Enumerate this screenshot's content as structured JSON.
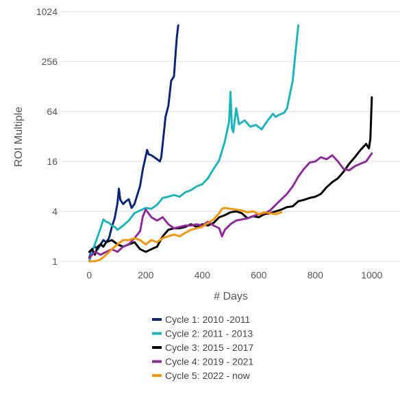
{
  "chart_data": {
    "type": "line",
    "title": "",
    "xlabel": "# Days",
    "ylabel": "ROI Multiple",
    "xlim": [
      -100,
      1100
    ],
    "xticks": [
      0,
      200,
      400,
      600,
      800,
      1000
    ],
    "ylim": [
      1,
      1024
    ],
    "yscale": "log2",
    "yticks": [
      1,
      4,
      16,
      64,
      256,
      1024
    ],
    "ytick_labels": [
      "1",
      "4",
      "16",
      "64",
      "256",
      "1024"
    ],
    "grid": "horizontal",
    "legend_position": "bottom",
    "series": [
      {
        "name": "Cycle 1: 2010 -2011",
        "color": "#0b2579",
        "x": [
          0,
          10,
          20,
          30,
          40,
          50,
          60,
          70,
          80,
          90,
          100,
          105,
          110,
          120,
          130,
          140,
          150,
          160,
          170,
          180,
          190,
          200,
          205,
          210,
          220,
          230,
          240,
          250,
          255,
          260,
          270,
          280,
          290,
          300,
          305,
          310,
          315
        ],
        "y": [
          1.1,
          1.4,
          1.5,
          1.4,
          1.6,
          1.8,
          1.7,
          1.9,
          2.6,
          3.3,
          5.0,
          7.5,
          5.5,
          4.9,
          5.3,
          5.6,
          4.4,
          4.9,
          6.3,
          8.1,
          13.0,
          18.5,
          22.0,
          19.5,
          19.0,
          18.0,
          17.0,
          16.0,
          18.0,
          26.0,
          55.0,
          75.0,
          150.0,
          170.0,
          300.0,
          500.0,
          700.0
        ]
      },
      {
        "name": "Cycle 2: 2011 - 2013",
        "color": "#1cb5be",
        "x": [
          0,
          10,
          20,
          30,
          40,
          50,
          60,
          70,
          80,
          90,
          100,
          120,
          140,
          160,
          180,
          200,
          220,
          240,
          260,
          280,
          300,
          320,
          340,
          360,
          380,
          400,
          420,
          440,
          460,
          480,
          495,
          500,
          505,
          510,
          520,
          530,
          550,
          570,
          590,
          610,
          630,
          650,
          660,
          670,
          690,
          700,
          720,
          730,
          740
        ],
        "y": [
          1.0,
          1.3,
          1.6,
          2.0,
          2.5,
          3.2,
          3.0,
          2.9,
          2.7,
          2.6,
          2.4,
          2.7,
          3.1,
          3.8,
          4.1,
          4.4,
          4.3,
          4.8,
          5.8,
          6.0,
          6.3,
          6.0,
          6.8,
          7.2,
          8.0,
          8.5,
          10.0,
          13.0,
          16.5,
          28.0,
          48.0,
          110.0,
          40.0,
          36.0,
          70.0,
          45.0,
          50.0,
          42.0,
          44.0,
          39.0,
          49.0,
          60.0,
          55.0,
          58.0,
          62.0,
          70.0,
          150.0,
          330.0,
          700.0
        ]
      },
      {
        "name": "Cycle 3: 2015 - 2017",
        "color": "#000000",
        "x": [
          0,
          10,
          20,
          30,
          40,
          50,
          60,
          80,
          100,
          120,
          140,
          160,
          180,
          200,
          220,
          240,
          260,
          280,
          300,
          320,
          340,
          360,
          380,
          400,
          420,
          440,
          460,
          480,
          500,
          520,
          540,
          560,
          580,
          600,
          620,
          640,
          660,
          680,
          700,
          720,
          740,
          760,
          780,
          800,
          820,
          840,
          860,
          880,
          900,
          920,
          940,
          960,
          980,
          990,
          995,
          1000
        ],
        "y": [
          1.3,
          1.4,
          1.2,
          1.5,
          1.6,
          1.5,
          1.7,
          1.8,
          1.6,
          1.5,
          1.6,
          1.7,
          1.4,
          1.3,
          1.4,
          1.5,
          2.0,
          2.4,
          2.5,
          2.5,
          2.6,
          2.8,
          2.6,
          2.8,
          2.7,
          2.9,
          3.4,
          3.6,
          3.9,
          4.0,
          3.8,
          3.3,
          3.5,
          3.4,
          3.7,
          3.8,
          4.0,
          4.2,
          4.5,
          4.6,
          5.3,
          5.5,
          5.8,
          6.0,
          6.5,
          7.8,
          9.0,
          10.0,
          12.0,
          15.0,
          18.0,
          22.0,
          26.0,
          23.0,
          30.0,
          95.0
        ]
      },
      {
        "name": "Cycle 4: 2019 - 2021",
        "color": "#8e2a9c",
        "x": [
          0,
          20,
          40,
          60,
          80,
          100,
          120,
          140,
          160,
          180,
          190,
          200,
          220,
          240,
          260,
          280,
          300,
          320,
          340,
          360,
          380,
          400,
          420,
          440,
          460,
          470,
          480,
          500,
          520,
          540,
          560,
          580,
          600,
          620,
          640,
          660,
          680,
          700,
          720,
          740,
          760,
          780,
          800,
          820,
          840,
          860,
          880,
          900,
          920,
          940,
          960,
          980,
          1000
        ],
        "y": [
          1.1,
          1.3,
          1.2,
          1.3,
          1.4,
          1.3,
          1.5,
          1.6,
          1.9,
          2.3,
          3.5,
          4.2,
          3.4,
          3.1,
          3.4,
          2.8,
          2.5,
          2.6,
          2.7,
          2.7,
          2.8,
          2.7,
          3.0,
          2.7,
          2.5,
          2.0,
          2.4,
          2.8,
          3.1,
          3.2,
          3.3,
          3.5,
          3.7,
          3.8,
          4.1,
          4.8,
          5.6,
          6.5,
          8.0,
          10.5,
          13.0,
          15.5,
          16.0,
          18.0,
          17.0,
          19.0,
          16.0,
          13.0,
          12.5,
          14.0,
          15.0,
          16.0,
          20.0
        ]
      },
      {
        "name": "Cycle 5: 2022 - now",
        "color": "#f7940a",
        "x": [
          0,
          20,
          40,
          60,
          80,
          100,
          120,
          140,
          160,
          180,
          200,
          220,
          240,
          260,
          280,
          300,
          320,
          340,
          360,
          380,
          400,
          420,
          440,
          460,
          470,
          480,
          500,
          520,
          540,
          560,
          580,
          600,
          620,
          640,
          660,
          680
        ],
        "y": [
          1.0,
          1.0,
          1.05,
          1.2,
          1.4,
          1.6,
          1.8,
          1.8,
          1.9,
          1.8,
          1.6,
          1.8,
          1.7,
          1.9,
          2.0,
          2.1,
          2.0,
          2.2,
          2.4,
          2.5,
          2.6,
          2.9,
          3.2,
          3.8,
          4.3,
          4.4,
          4.3,
          4.2,
          4.1,
          3.9,
          4.0,
          3.7,
          3.9,
          3.8,
          3.7,
          3.9
        ]
      }
    ]
  }
}
